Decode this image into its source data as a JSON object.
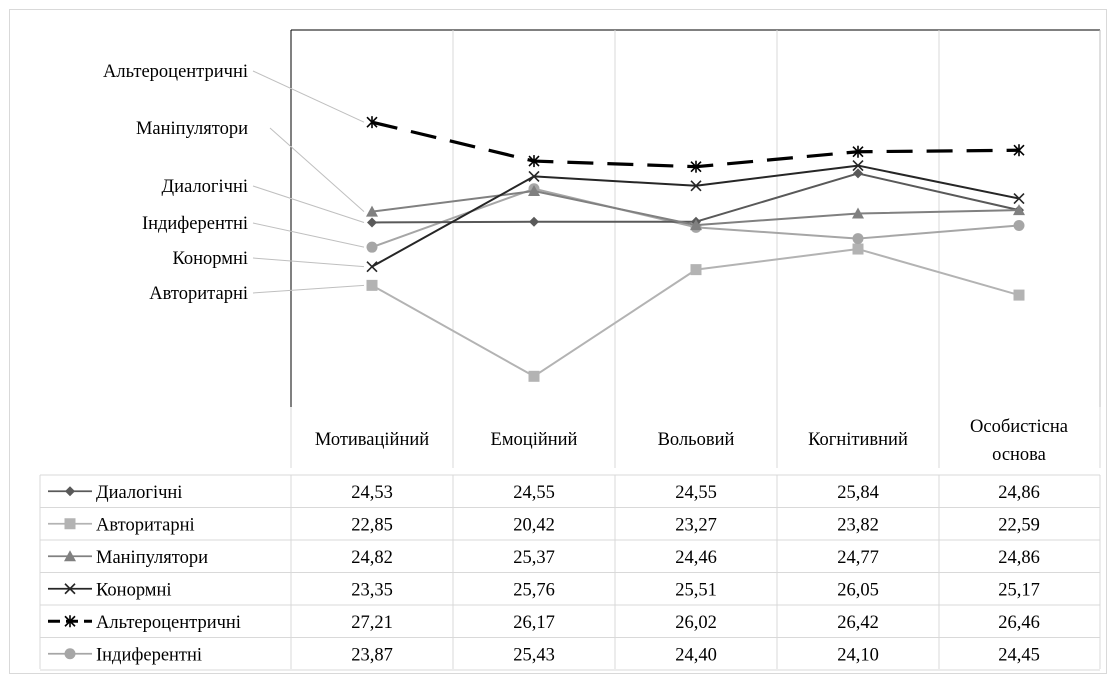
{
  "chart_data": {
    "type": "line",
    "title": "",
    "xlabel": "",
    "ylabel": "",
    "categories": [
      "Мотиваційний",
      "Емоційний",
      "Вольовий",
      "Когнітивний",
      "Особистісна основа"
    ],
    "ylim": [
      19.6,
      27.6
    ],
    "grid": "vertical",
    "legend": "data-table",
    "series": [
      {
        "name": "Диалогічні",
        "values": [
          24.53,
          24.55,
          24.55,
          25.84,
          24.86
        ],
        "display": [
          "24,53",
          "24,55",
          "24,55",
          "25,84",
          "24,86"
        ],
        "color": "#595959",
        "marker": "diamond",
        "dash": "solid"
      },
      {
        "name": "Авторитарні",
        "values": [
          22.85,
          20.42,
          23.27,
          23.82,
          22.59
        ],
        "display": [
          "22,85",
          "20,42",
          "23,27",
          "23,82",
          "22,59"
        ],
        "color": "#b3b3b3",
        "marker": "square",
        "dash": "solid"
      },
      {
        "name": "Маніпулятори",
        "values": [
          24.82,
          25.37,
          24.46,
          24.77,
          24.86
        ],
        "display": [
          "24,82",
          "25,37",
          "24,46",
          "24,77",
          "24,86"
        ],
        "color": "#808080",
        "marker": "triangle",
        "dash": "solid"
      },
      {
        "name": "Конормні",
        "values": [
          23.35,
          25.76,
          25.51,
          26.05,
          25.17
        ],
        "display": [
          "23,35",
          "25,76",
          "25,51",
          "26,05",
          "25,17"
        ],
        "color": "#262626",
        "marker": "x",
        "dash": "solid"
      },
      {
        "name": "Альтероцентричні",
        "values": [
          27.21,
          26.17,
          26.02,
          26.42,
          26.46
        ],
        "display": [
          "27,21",
          "26,17",
          "26,02",
          "26,42",
          "26,46"
        ],
        "color": "#000000",
        "marker": "star",
        "dash": "dashed"
      },
      {
        "name": "Індиферентні",
        "values": [
          23.87,
          25.43,
          24.4,
          24.1,
          24.45
        ],
        "display": [
          "23,87",
          "25,43",
          "24,40",
          "24,10",
          "24,45"
        ],
        "color": "#a6a6a6",
        "marker": "circle",
        "dash": "solid"
      }
    ],
    "annotations": [
      {
        "series": "Альтероцентричні",
        "text": "Альтероцентричні"
      },
      {
        "series": "Маніпулятори",
        "text": "Маніпулятори"
      },
      {
        "series": "Диалогічні",
        "text": "Диалогічні"
      },
      {
        "series": "Індиферентні",
        "text": "Індиферентні"
      },
      {
        "series": "Конормні",
        "text": "Конормні"
      },
      {
        "series": "Авторитарні",
        "text": "Авторитарні"
      }
    ]
  }
}
